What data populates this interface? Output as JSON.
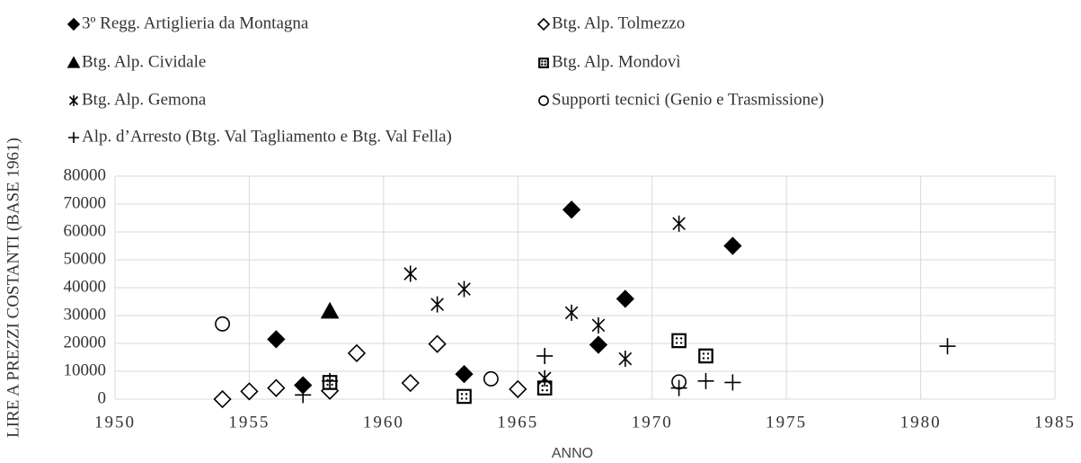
{
  "chart_data": {
    "type": "scatter",
    "x_label": "ANNO",
    "y_label": "LIRE A PREZZI COSTANTI (BASE 1961)",
    "xlim": [
      1950,
      1985
    ],
    "xticks": [
      1950,
      1955,
      1960,
      1965,
      1970,
      1975,
      1980,
      1985
    ],
    "ylim": [
      0,
      80000
    ],
    "yticks": [
      0,
      10000,
      20000,
      30000,
      40000,
      50000,
      60000,
      70000,
      80000
    ],
    "grid": true,
    "legend": "top",
    "series": [
      {
        "name": "3º Regg. Artiglieria da Montagna",
        "marker": "diamond-filled",
        "color": "#000000",
        "x": [
          1956,
          1957,
          1963,
          1967,
          1968,
          1969,
          1973
        ],
        "values": [
          21500,
          5000,
          9000,
          68000,
          19500,
          36000,
          55000
        ]
      },
      {
        "name": "Btg. Alp. Tolmezzo",
        "marker": "diamond-open",
        "color": "#000000",
        "x": [
          1954,
          1955,
          1956,
          1958,
          1959,
          1961,
          1962,
          1965
        ],
        "values": [
          0,
          2800,
          4000,
          3000,
          16500,
          5800,
          19800,
          3600
        ]
      },
      {
        "name": "Btg. Alp. Cividale",
        "marker": "triangle-filled",
        "color": "#000000",
        "x": [
          1958
        ],
        "values": [
          31500
        ]
      },
      {
        "name": "Btg. Alp. Mondovì",
        "marker": "square-dotted",
        "color": "#000000",
        "x": [
          1958,
          1963,
          1966,
          1971,
          1972
        ],
        "values": [
          6000,
          1000,
          4000,
          21000,
          15500
        ]
      },
      {
        "name": "Btg. Alp. Gemona",
        "marker": "asterisk",
        "color": "#000000",
        "x": [
          1961,
          1962,
          1963,
          1966,
          1967,
          1968,
          1969,
          1971
        ],
        "values": [
          45000,
          34000,
          39500,
          7500,
          31000,
          26500,
          14500,
          63000
        ]
      },
      {
        "name": "Supporti tecnici (Genio e Trasmissione)",
        "marker": "circle-open",
        "color": "#000000",
        "x": [
          1954,
          1964,
          1971
        ],
        "values": [
          27000,
          7300,
          6200
        ]
      },
      {
        "name": "Alp. d’Arresto (Btg. Val Tagliamento e Btg. Val Fella)",
        "marker": "plus",
        "color": "#000000",
        "x": [
          1957,
          1958,
          1966,
          1971,
          1972,
          1973,
          1981
        ],
        "values": [
          1500,
          6500,
          15500,
          4000,
          6500,
          6000,
          19000
        ]
      }
    ]
  }
}
